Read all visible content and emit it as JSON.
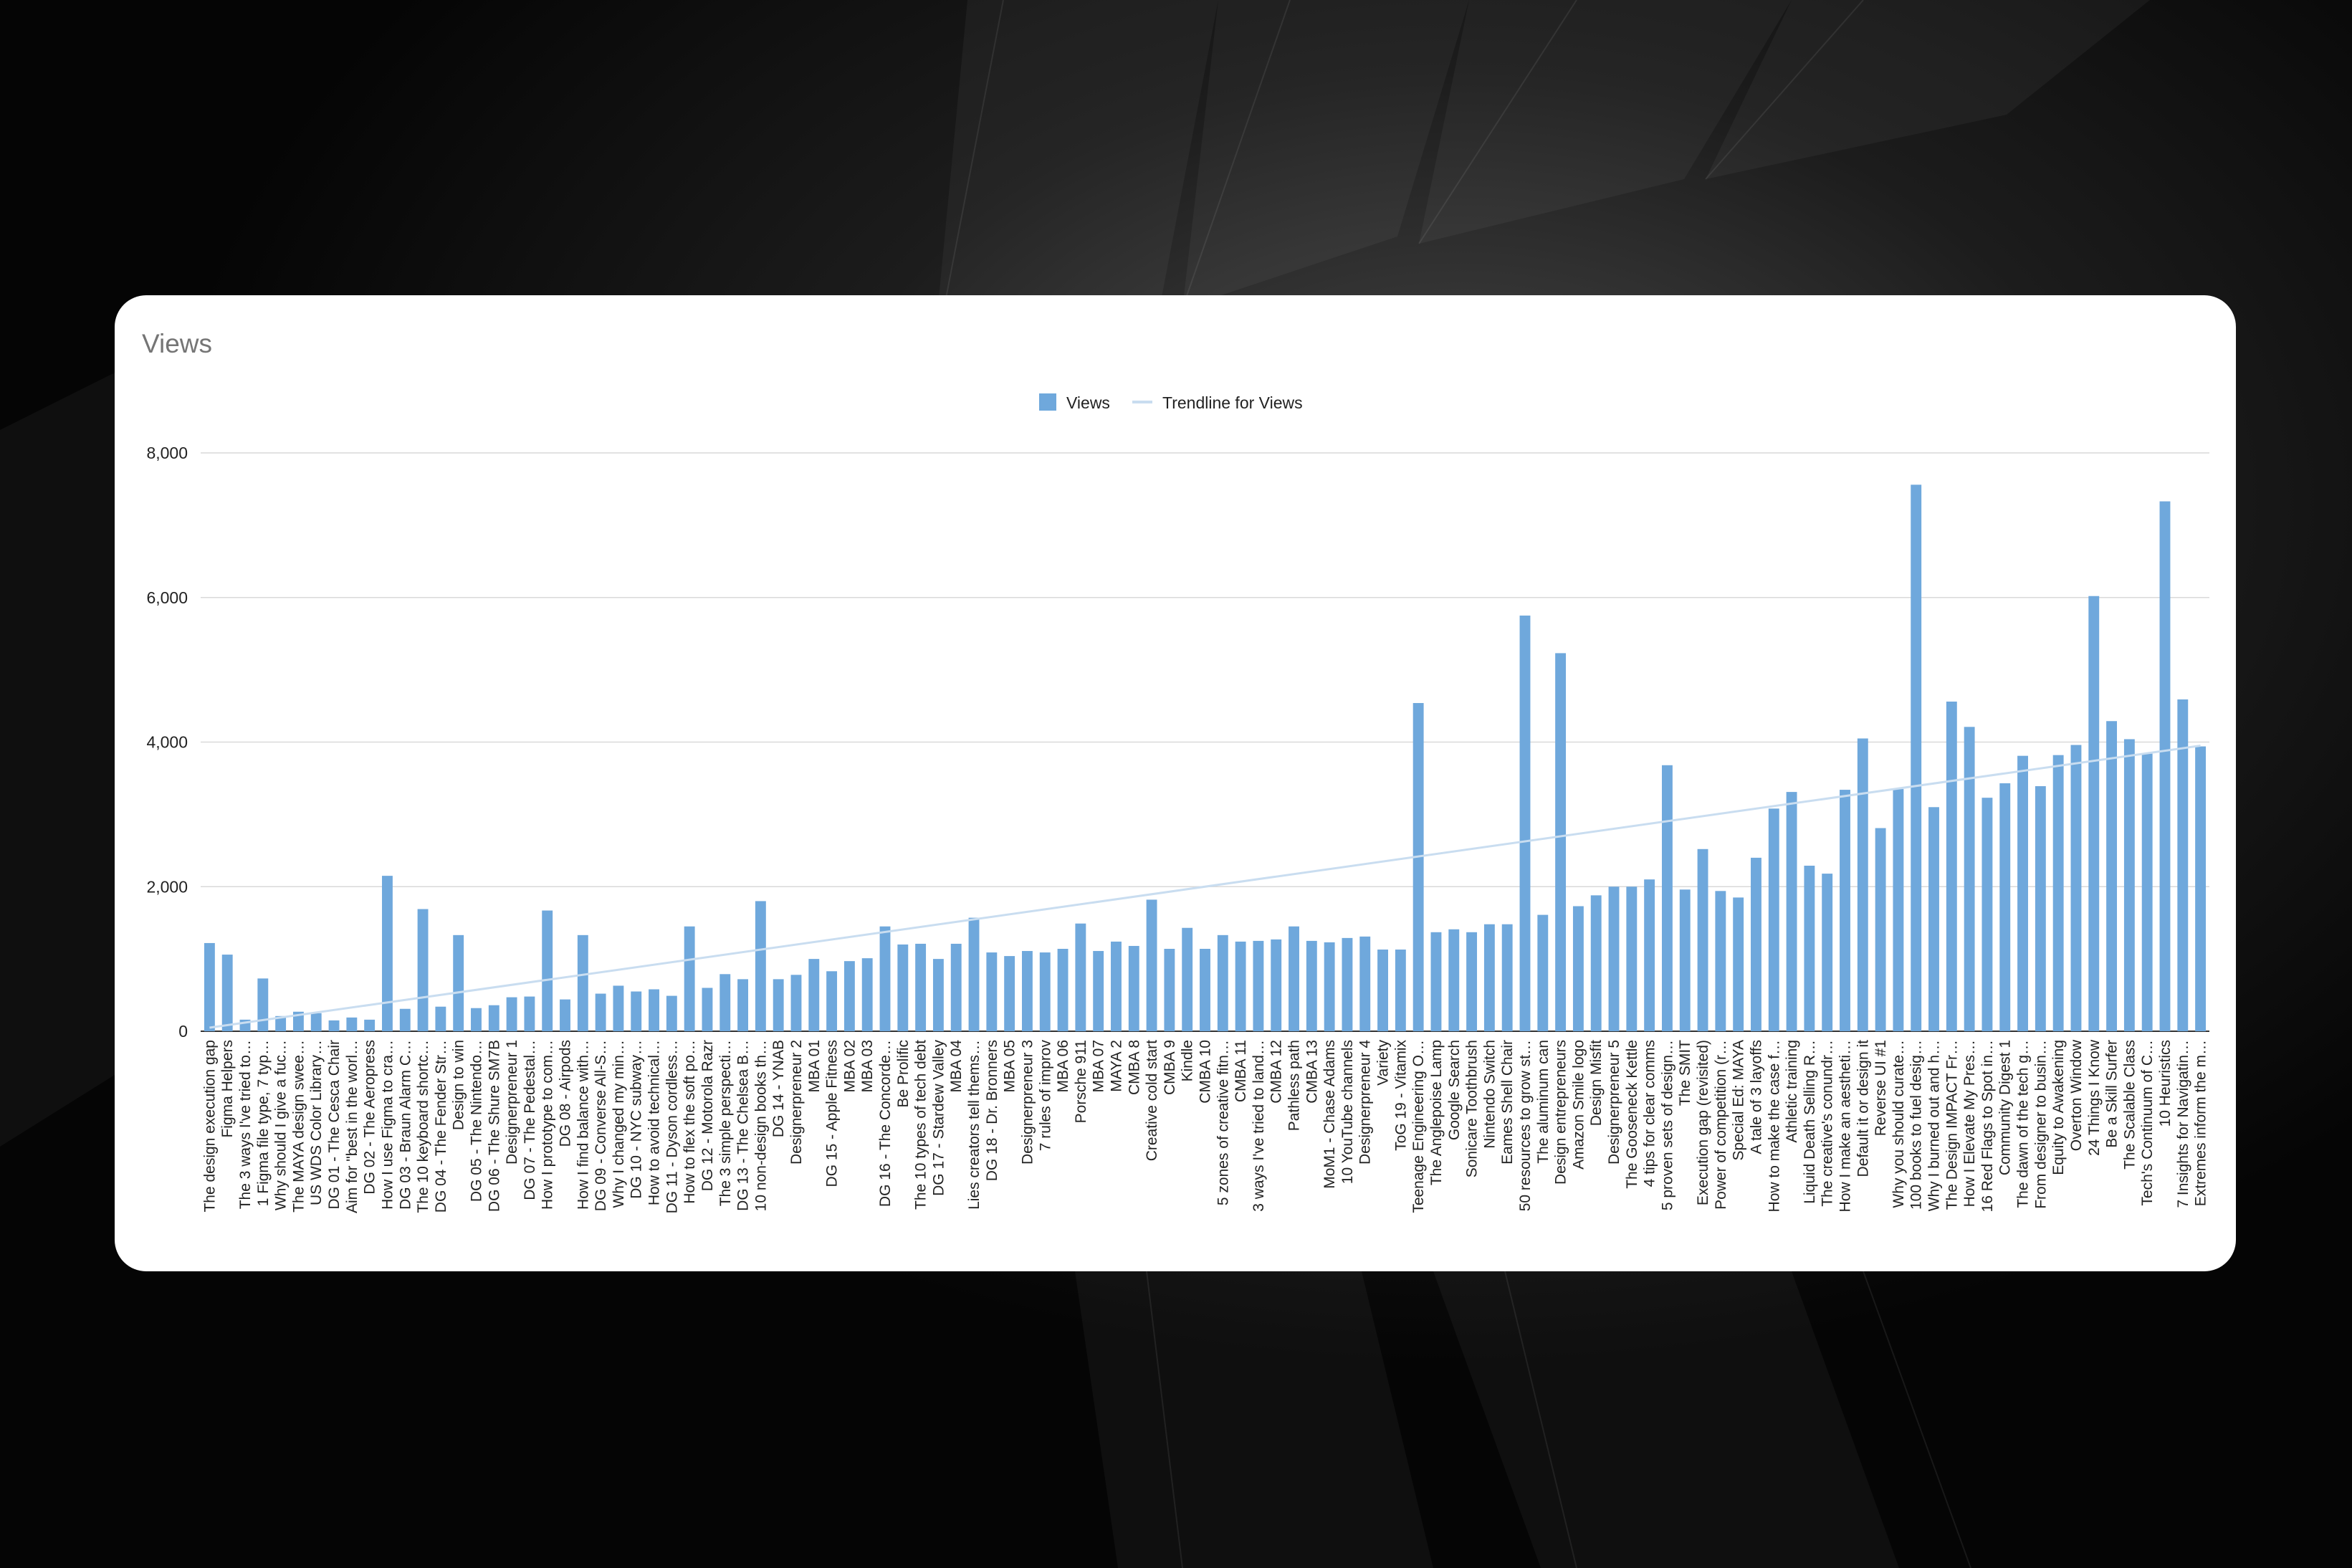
{
  "colors": {
    "page_background": "#050505",
    "card_background": "#ffffff",
    "title_text": "#757575",
    "bar": "#6fa8dc",
    "trendline": "#c9ddf0",
    "gridline": "#d9d9d9",
    "axis_text": "#222222"
  },
  "chart_data": {
    "type": "bar",
    "title": "Views",
    "xlabel": "",
    "ylabel": "",
    "ylim": [
      0,
      8000
    ],
    "yticks": [
      0,
      2000,
      4000,
      6000,
      8000
    ],
    "ytick_labels": [
      "0",
      "2,000",
      "4,000",
      "6,000",
      "8,000"
    ],
    "grid": true,
    "legend_position": "top-center",
    "legend": {
      "bar": "Views",
      "line": "Trendline for Views"
    },
    "trendline": {
      "type": "linear",
      "start": 50,
      "end": 3950
    },
    "categories": [
      "The design execution gap",
      "Figma Helpers",
      "The 3 ways I've tried to…",
      "1 Figma file type, 7 typ…",
      "Why should I give a fuc…",
      "The MAYA design swee…",
      "US WDS Color Library…",
      "DG 01 - The Cesca Chair",
      "Aim for \"best in the worl…",
      "DG 02 - The Aeropress",
      "How I use Figma to cra…",
      "DG 03 - Braun Alarm C…",
      "The 10 keyboard shortc…",
      "DG 04 - The Fender Str…",
      "Design to win",
      "DG 05 - The Nintendo…",
      "DG 06 - The Shure SM7B",
      "Designerpreneur 1",
      "DG 07 - The Pedestal…",
      "How I prototype to com…",
      "DG 08 - Airpods",
      "How I find balance with…",
      "DG 09 - Converse All-S…",
      "Why I changed my min…",
      "DG 10 - NYC subway…",
      "How to avoid technical…",
      "DG 11 - Dyson cordless…",
      "How to flex the soft po…",
      "DG 12 - Motorola Razr",
      "The 3 simple perspecti…",
      "DG 13 - The Chelsea B…",
      "10 non-design books th…",
      "DG 14 - YNAB",
      "Designerpreneur 2",
      "MBA 01",
      "DG 15 - Apple Fitness",
      "MBA 02",
      "MBA 03",
      "DG 16 - The Concorde…",
      "Be Prolific",
      "The 10 types of tech debt",
      "DG 17 - Stardew Valley",
      "MBA 04",
      "Lies creators tell thems…",
      "DG 18 - Dr. Bronners",
      "MBA 05",
      "Designerpreneur 3",
      "7 rules of improv",
      "MBA 06",
      "Porsche 911",
      "MBA 07",
      "MAYA 2",
      "CMBA 8",
      "Creative cold start",
      "CMBA 9",
      "Kindle",
      "CMBA 10",
      "5 zones of creative fitn…",
      "CMBA 11",
      "3 ways I've tried to land…",
      "CMBA 12",
      "Pathless path",
      "CMBA 13",
      "MoM1 - Chase Adams",
      "10 YouTube channels",
      "Designerpreneur 4",
      "Variety",
      "ToG 19 - Vitamix",
      "Teenage Engineering O…",
      "The Anglepoise Lamp",
      "Google Search",
      "Sonicare Toothbrush",
      "Nintendo Switch",
      "Eames Shell Chair",
      "50 resources to grow st…",
      "The aluminum can",
      "Design entrepreneurs",
      "Amazon Smile logo",
      "Design Misfit",
      "Designerpreneur 5",
      "The Gooseneck Kettle",
      "4 tips for clear comms",
      "5 proven sets of design…",
      "The SMIT",
      "Execution gap (revisited)",
      "Power of competition (r…",
      "Special Ed: MAYA",
      "A tale of 3 layoffs",
      "How to make the case f…",
      "Athletic training",
      "Liquid Death Selling R…",
      "The creative's conundr…",
      "How I make an aestheti…",
      "Default it or design it",
      "Reverse UI #1",
      "Why you should curate…",
      "100 books to fuel desig…",
      "Why I burned out and h…",
      "The Design IMPACT Fr…",
      "How I Elevate My Pres…",
      "16 Red Flags to Spot in…",
      "Community Digest 1",
      "The dawn of the tech g…",
      "From designer to busin…",
      "Equity to Awakening",
      "Overton Window",
      "24 Things I Know",
      "Be a Skill Surfer",
      "The Scalable Class",
      "Tech's Continuum of C…",
      "10 Heuristics",
      "7 Insights for Navigatin…",
      "Extremes inform the m…"
    ],
    "values": [
      1220,
      1060,
      160,
      730,
      210,
      270,
      250,
      150,
      190,
      160,
      2150,
      310,
      1690,
      340,
      1330,
      320,
      360,
      470,
      480,
      1670,
      440,
      1330,
      520,
      630,
      550,
      580,
      490,
      1450,
      600,
      790,
      720,
      1800,
      720,
      780,
      1000,
      830,
      970,
      1010,
      1450,
      1200,
      1210,
      1000,
      1210,
      1570,
      1090,
      1040,
      1110,
      1090,
      1140,
      1490,
      1110,
      1240,
      1180,
      1820,
      1140,
      1430,
      1140,
      1330,
      1240,
      1250,
      1270,
      1450,
      1250,
      1230,
      1290,
      1310,
      1130,
      1130,
      4540,
      1370,
      1410,
      1370,
      1480,
      1480,
      5750,
      1610,
      5230,
      1730,
      1880,
      2000,
      2000,
      2100,
      3680,
      1960,
      2520,
      1940,
      1850,
      2400,
      3080,
      3310,
      2290,
      2180,
      3340,
      4050,
      2810,
      3350,
      7560,
      3100,
      4560,
      4210,
      3230,
      3430,
      3810,
      3390,
      3820,
      3960,
      6020,
      4290,
      4040,
      3840,
      7330,
      4590,
      3940
    ]
  }
}
